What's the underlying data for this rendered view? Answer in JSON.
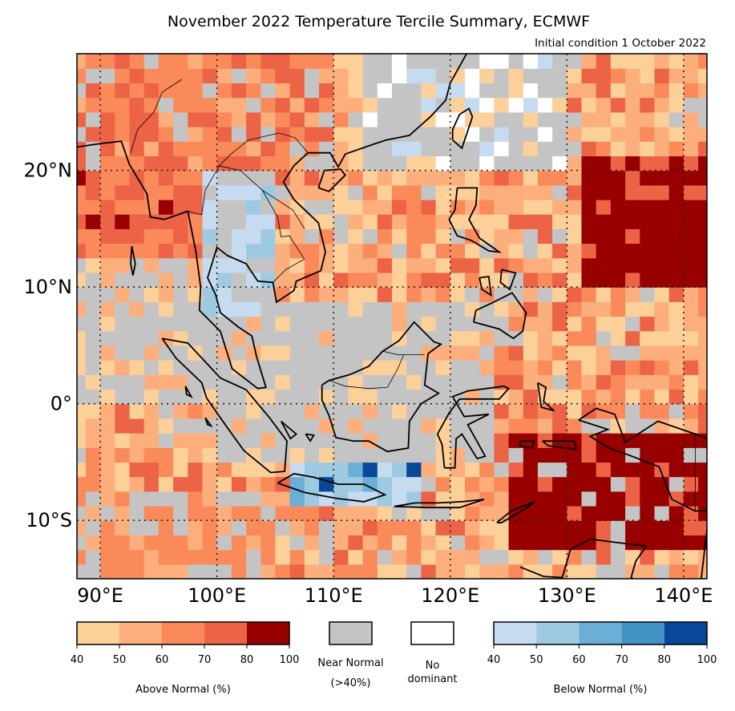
{
  "title": "November 2022 Temperature Tercile Summary, ECMWF",
  "subtitle": "Initial condition 1 October 2022",
  "map": {
    "lon_range": [
      88,
      142
    ],
    "lat_range": [
      -15,
      30
    ],
    "lon_ticks": [
      {
        "value": 90,
        "label": "90°E"
      },
      {
        "value": 100,
        "label": "100°E"
      },
      {
        "value": 110,
        "label": "110°E"
      },
      {
        "value": 120,
        "label": "120°E"
      },
      {
        "value": 130,
        "label": "130°E"
      },
      {
        "value": 140,
        "label": "140°E"
      }
    ],
    "lat_ticks": [
      {
        "value": 20,
        "label": "20°N"
      },
      {
        "value": 10,
        "label": "10°N"
      },
      {
        "value": 0,
        "label": "0°"
      },
      {
        "value": -10,
        "label": "10°S"
      }
    ],
    "gridlines": "dotted"
  },
  "legend": {
    "above": {
      "label": "Above Normal (%)",
      "ticks": [
        "40",
        "50",
        "60",
        "70",
        "80",
        "100"
      ],
      "colors": [
        "#fdd09a",
        "#fcae7c",
        "#fb8a5a",
        "#ec6346",
        "#980000"
      ]
    },
    "near": {
      "line1": "Near Normal",
      "line2": "(>40%)",
      "color": "#c4c4c4"
    },
    "nodom": {
      "line1": "No",
      "line2": "dominant",
      "color": "#ffffff"
    },
    "below": {
      "label": "Below Normal (%)",
      "ticks": [
        "40",
        "50",
        "60",
        "70",
        "80",
        "100"
      ],
      "colors": [
        "#c6dbef",
        "#9ecae1",
        "#6baed6",
        "#4292c6",
        "#08479a"
      ]
    }
  }
}
